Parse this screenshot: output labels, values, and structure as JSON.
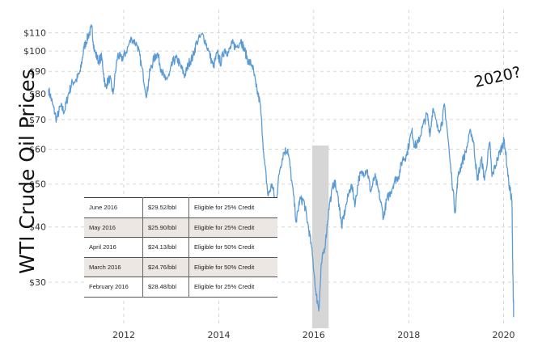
{
  "chart_data": {
    "type": "line",
    "ylabel": "WTI Crude Oil Prices",
    "xlabel": "",
    "y_scale": "log",
    "ylim": [
      24,
      115
    ],
    "xlim": [
      "2010-06-01",
      "2020-05-01"
    ],
    "y_ticks": [
      {
        "value": 110,
        "label": "$110"
      },
      {
        "value": 100,
        "label": "$100"
      },
      {
        "value": 90,
        "label": "$90"
      },
      {
        "value": 80,
        "label": "$80"
      },
      {
        "value": 70,
        "label": "$70"
      },
      {
        "value": 60,
        "label": "$60"
      },
      {
        "value": 50,
        "label": "$50"
      },
      {
        "value": 40,
        "label": "$40"
      },
      {
        "value": 30,
        "label": "$30"
      }
    ],
    "x_ticks": [
      {
        "value": "2012-01-01",
        "label": "2012"
      },
      {
        "value": "2014-01-01",
        "label": "2014"
      },
      {
        "value": "2016-01-01",
        "label": "2016"
      },
      {
        "value": "2018-01-01",
        "label": "2018"
      },
      {
        "value": "2020-01-01",
        "label": "2020"
      }
    ],
    "grid": true,
    "annotation": "2020?",
    "highlight_band": {
      "start": "2015-12-20",
      "end": "2016-04-25"
    },
    "series": [
      {
        "color": "#5b9bd5",
        "points": [
          [
            "2010-06-01",
            82
          ],
          [
            "2010-07-01",
            76
          ],
          [
            "2010-08-01",
            70
          ],
          [
            "2010-09-01",
            75
          ],
          [
            "2010-10-01",
            73
          ],
          [
            "2010-11-01",
            80
          ],
          [
            "2010-12-01",
            85
          ],
          [
            "2011-01-01",
            86
          ],
          [
            "2011-02-01",
            90
          ],
          [
            "2011-03-01",
            102
          ],
          [
            "2011-04-01",
            108
          ],
          [
            "2011-04-29",
            113
          ],
          [
            "2011-05-20",
            100
          ],
          [
            "2011-06-20",
            95
          ],
          [
            "2011-07-15",
            97
          ],
          [
            "2011-08-10",
            83
          ],
          [
            "2011-09-15",
            87
          ],
          [
            "2011-10-10",
            80
          ],
          [
            "2011-11-15",
            98
          ],
          [
            "2011-12-15",
            96
          ],
          [
            "2012-01-15",
            99
          ],
          [
            "2012-03-01",
            107
          ],
          [
            "2012-04-15",
            103
          ],
          [
            "2012-05-15",
            93
          ],
          [
            "2012-06-25",
            79
          ],
          [
            "2012-07-20",
            90
          ],
          [
            "2012-08-20",
            96
          ],
          [
            "2012-09-15",
            99
          ],
          [
            "2012-10-15",
            91
          ],
          [
            "2012-11-15",
            86
          ],
          [
            "2012-12-15",
            88
          ],
          [
            "2013-01-15",
            95
          ],
          [
            "2013-02-15",
            96
          ],
          [
            "2013-03-15",
            92
          ],
          [
            "2013-04-15",
            88
          ],
          [
            "2013-05-15",
            94
          ],
          [
            "2013-06-15",
            97
          ],
          [
            "2013-07-15",
            105
          ],
          [
            "2013-09-01",
            109
          ],
          [
            "2013-10-15",
            100
          ],
          [
            "2013-11-20",
            92
          ],
          [
            "2013-12-20",
            99
          ],
          [
            "2014-01-15",
            94
          ],
          [
            "2014-02-15",
            101
          ],
          [
            "2014-03-15",
            99
          ],
          [
            "2014-04-15",
            104
          ],
          [
            "2014-05-15",
            102
          ],
          [
            "2014-06-20",
            106
          ],
          [
            "2014-07-15",
            101
          ],
          [
            "2014-08-15",
            95
          ],
          [
            "2014-09-15",
            93
          ],
          [
            "2014-10-15",
            83
          ],
          [
            "2014-11-15",
            76
          ],
          [
            "2014-12-15",
            57
          ],
          [
            "2015-01-15",
            47
          ],
          [
            "2015-02-15",
            50
          ],
          [
            "2015-03-15",
            45
          ],
          [
            "2015-04-15",
            54
          ],
          [
            "2015-05-15",
            59
          ],
          [
            "2015-06-15",
            60
          ],
          [
            "2015-07-15",
            51
          ],
          [
            "2015-08-20",
            41
          ],
          [
            "2015-09-15",
            46
          ],
          [
            "2015-10-15",
            46
          ],
          [
            "2015-11-15",
            41
          ],
          [
            "2015-12-15",
            36
          ],
          [
            "2016-01-20",
            28
          ],
          [
            "2016-02-11",
            26.2
          ],
          [
            "2016-03-01",
            33
          ],
          [
            "2016-04-01",
            37
          ],
          [
            "2016-05-01",
            45
          ],
          [
            "2016-06-08",
            51
          ],
          [
            "2016-07-15",
            45
          ],
          [
            "2016-08-03",
            40
          ],
          [
            "2016-09-01",
            44
          ],
          [
            "2016-10-15",
            50
          ],
          [
            "2016-11-15",
            45
          ],
          [
            "2016-12-15",
            52
          ],
          [
            "2017-01-15",
            53
          ],
          [
            "2017-02-15",
            54
          ],
          [
            "2017-03-15",
            48
          ],
          [
            "2017-04-15",
            52
          ],
          [
            "2017-05-15",
            48
          ],
          [
            "2017-06-21",
            42
          ],
          [
            "2017-07-15",
            46
          ],
          [
            "2017-08-15",
            48
          ],
          [
            "2017-09-15",
            51
          ],
          [
            "2017-10-15",
            52
          ],
          [
            "2017-11-15",
            57
          ],
          [
            "2017-12-15",
            58
          ],
          [
            "2018-01-25",
            66
          ],
          [
            "2018-02-15",
            61
          ],
          [
            "2018-03-15",
            62
          ],
          [
            "2018-04-15",
            67
          ],
          [
            "2018-05-22",
            72
          ],
          [
            "2018-06-15",
            65
          ],
          [
            "2018-07-05",
            74
          ],
          [
            "2018-08-15",
            66
          ],
          [
            "2018-09-15",
            69
          ],
          [
            "2018-10-03",
            76
          ],
          [
            "2018-11-15",
            56
          ],
          [
            "2018-12-24",
            43
          ],
          [
            "2019-01-15",
            52
          ],
          [
            "2019-02-15",
            56
          ],
          [
            "2019-03-15",
            59
          ],
          [
            "2019-04-23",
            66
          ],
          [
            "2019-05-15",
            62
          ],
          [
            "2019-06-12",
            51
          ],
          [
            "2019-07-15",
            57
          ],
          [
            "2019-08-07",
            51
          ],
          [
            "2019-09-16",
            62
          ],
          [
            "2019-10-03",
            52
          ],
          [
            "2019-11-15",
            57
          ],
          [
            "2019-12-20",
            61
          ],
          [
            "2020-01-06",
            63
          ],
          [
            "2020-02-10",
            50
          ],
          [
            "2020-03-05",
            46
          ],
          [
            "2020-03-10",
            34
          ],
          [
            "2020-03-18",
            25
          ]
        ]
      }
    ]
  },
  "table": {
    "rows": [
      {
        "month": "June 2016",
        "price": "$29.52/bbl",
        "status": "Eligible for 25% Credit"
      },
      {
        "month": "May 2016",
        "price": "$25.90/bbl",
        "status": "Eligible for 25% Credit"
      },
      {
        "month": "April 2016",
        "price": "$24.13/bbl",
        "status": "Eligible for 50% Credit"
      },
      {
        "month": "March 2016",
        "price": "$24.76/bbl",
        "status": "Eligible for 50% Credit"
      },
      {
        "month": "February 2016",
        "price": "$28.48/bbl",
        "status": "Eligible for 25% Credit"
      }
    ]
  }
}
